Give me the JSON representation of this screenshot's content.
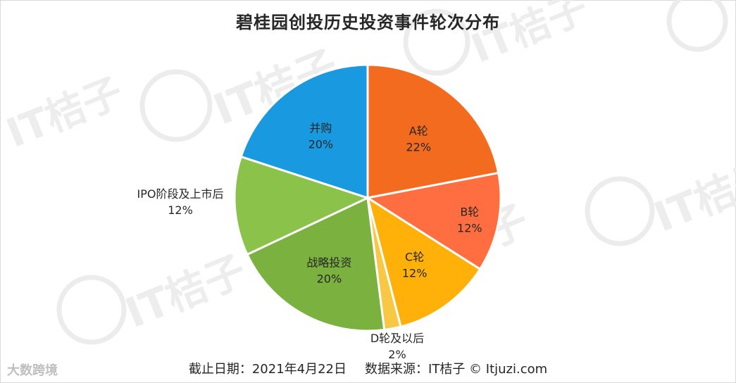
{
  "title": "碧桂园创投历史投资事件轮次分布",
  "footer": {
    "date": "截止日期：2021年4月22日",
    "source": "数据来源：IT桔子 © Itjuzi.com"
  },
  "watermark": {
    "text": "IT桔子",
    "color": "#ececec"
  },
  "brand_watermark": "大数跨境",
  "chart_data": {
    "type": "pie",
    "title": "碧桂园创投历史投资事件轮次分布",
    "start": "12 o'clock, clockwise",
    "slices": [
      {
        "label": "A轮",
        "value": 22,
        "pct_label": "22%",
        "color": "#F26B1F"
      },
      {
        "label": "B轮",
        "value": 12,
        "pct_label": "12%",
        "color": "#FF6E40"
      },
      {
        "label": "C轮",
        "value": 12,
        "pct_label": "12%",
        "color": "#FFB10A"
      },
      {
        "label": "D轮及以后",
        "value": 2,
        "pct_label": "2%",
        "color": "#F8C744"
      },
      {
        "label": "战略投资",
        "value": 20,
        "pct_label": "20%",
        "color": "#7BB13F"
      },
      {
        "label": "IPO阶段及上市后",
        "value": 12,
        "pct_label": "12%",
        "color": "#8BC34A"
      },
      {
        "label": "并购",
        "value": 20,
        "pct_label": "20%",
        "color": "#1899E0"
      }
    ]
  }
}
